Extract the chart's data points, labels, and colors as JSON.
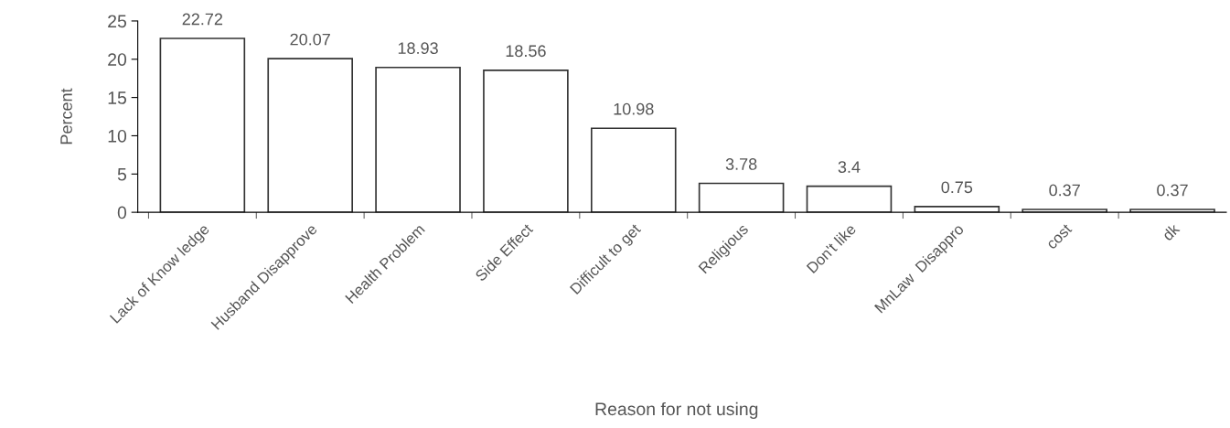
{
  "chart_data": {
    "type": "bar",
    "xlabel": "Reason for not using",
    "ylabel": "Percent",
    "categories": [
      "Lack of Know ledge",
      "Husband Disapprove",
      "Health Problem",
      "Side Effect",
      "Difficult to get",
      "Religious",
      "Don't like",
      "MnLaw  Disappro",
      "cost",
      "dk"
    ],
    "values": [
      22.72,
      20.07,
      18.93,
      18.56,
      10.98,
      3.78,
      3.4,
      0.75,
      0.37,
      0.37
    ],
    "color": "#ffffff",
    "ylim": [
      0,
      25
    ],
    "yticks": [
      0,
      5,
      10,
      15,
      20,
      25
    ],
    "data_labels": true,
    "grid": false,
    "legend": false
  }
}
